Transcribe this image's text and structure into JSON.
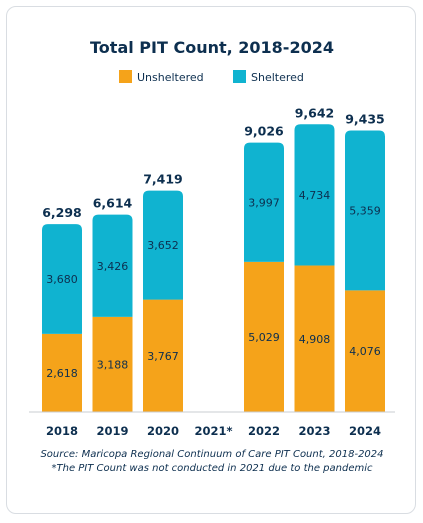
{
  "chart_data": {
    "type": "bar",
    "stacked": true,
    "title": "Total PIT Count, 2018-2024",
    "categories": [
      "2018",
      "2019",
      "2020",
      "2021*",
      "2022",
      "2023",
      "2024"
    ],
    "series": [
      {
        "name": "Unsheltered",
        "color": "#f5a31a",
        "values": [
          2618,
          3188,
          3767,
          null,
          5029,
          4908,
          4076
        ],
        "labels": [
          "2,618",
          "3,188",
          "3,767",
          "",
          "5,029",
          "4,908",
          "4,076"
        ]
      },
      {
        "name": "Sheltered",
        "color": "#10b3d0",
        "values": [
          3680,
          3426,
          3652,
          null,
          3997,
          4734,
          5359
        ],
        "labels": [
          "3,680",
          "3,426",
          "3,652",
          "",
          "3,997",
          "4,734",
          "5,359"
        ]
      }
    ],
    "totals": [
      6298,
      6614,
      7419,
      null,
      9026,
      9642,
      9435
    ],
    "total_labels": [
      "6,298",
      "6,614",
      "7,419",
      "",
      "9,026",
      "9,642",
      "9,435"
    ],
    "ylim": [
      0,
      10000
    ],
    "grid": false,
    "legend_position": "top",
    "notes": [
      "Source: Maricopa Regional Continuum of Care PIT Count, 2018-2024",
      "*The PIT Count was not conducted in 2021 due to the pandemic"
    ]
  }
}
